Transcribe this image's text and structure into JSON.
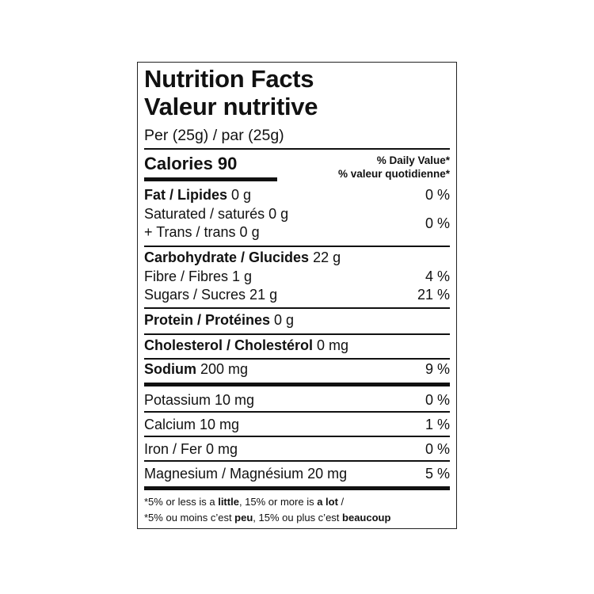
{
  "title_en": "Nutrition Facts",
  "title_fr": "Valeur nutritive",
  "serving": "Per (25g) / par (25g)",
  "calories": "Calories 90",
  "dv_en": "% Daily Value*",
  "dv_fr": "% valeur quotidienne*",
  "fat": {
    "label": "Fat / Lipides",
    "amount": " 0 g",
    "dv": "0 %"
  },
  "saturated": {
    "label": "Saturated / saturés 0 g"
  },
  "trans": {
    "label": "+ Trans / trans 0 g"
  },
  "sat_trans_dv": "0 %",
  "carb": {
    "label": "Carbohydrate / Glucides",
    "amount": " 22 g"
  },
  "fibre": {
    "label": "Fibre / Fibres 1 g",
    "dv": "4 %"
  },
  "sugars": {
    "label": "Sugars / Sucres 21 g",
    "dv": "21 %"
  },
  "protein": {
    "label": "Protein / Protéines",
    "amount": " 0 g"
  },
  "cholesterol": {
    "label": "Cholesterol / Cholestérol",
    "amount": " 0 mg"
  },
  "sodium": {
    "label": "Sodium",
    "amount": " 200 mg",
    "dv": "9 %"
  },
  "potassium": {
    "label": "Potassium 10 mg",
    "dv": "0 %"
  },
  "calcium": {
    "label": "Calcium 10 mg",
    "dv": "1 %"
  },
  "iron": {
    "label": "Iron / Fer 0 mg",
    "dv": "0 %"
  },
  "magnesium": {
    "label": "Magnesium / Magnésium 20 mg",
    "dv": "5 %"
  },
  "footnote_en": {
    "a": "*5% or less is a ",
    "b": "little",
    "c": ", 15% or more is ",
    "d": "a lot",
    "e": " /"
  },
  "footnote_fr": {
    "a": "*5% ou moins c’est ",
    "b": "peu",
    "c": ", 15% ou plus c’est ",
    "d": "beaucoup"
  }
}
